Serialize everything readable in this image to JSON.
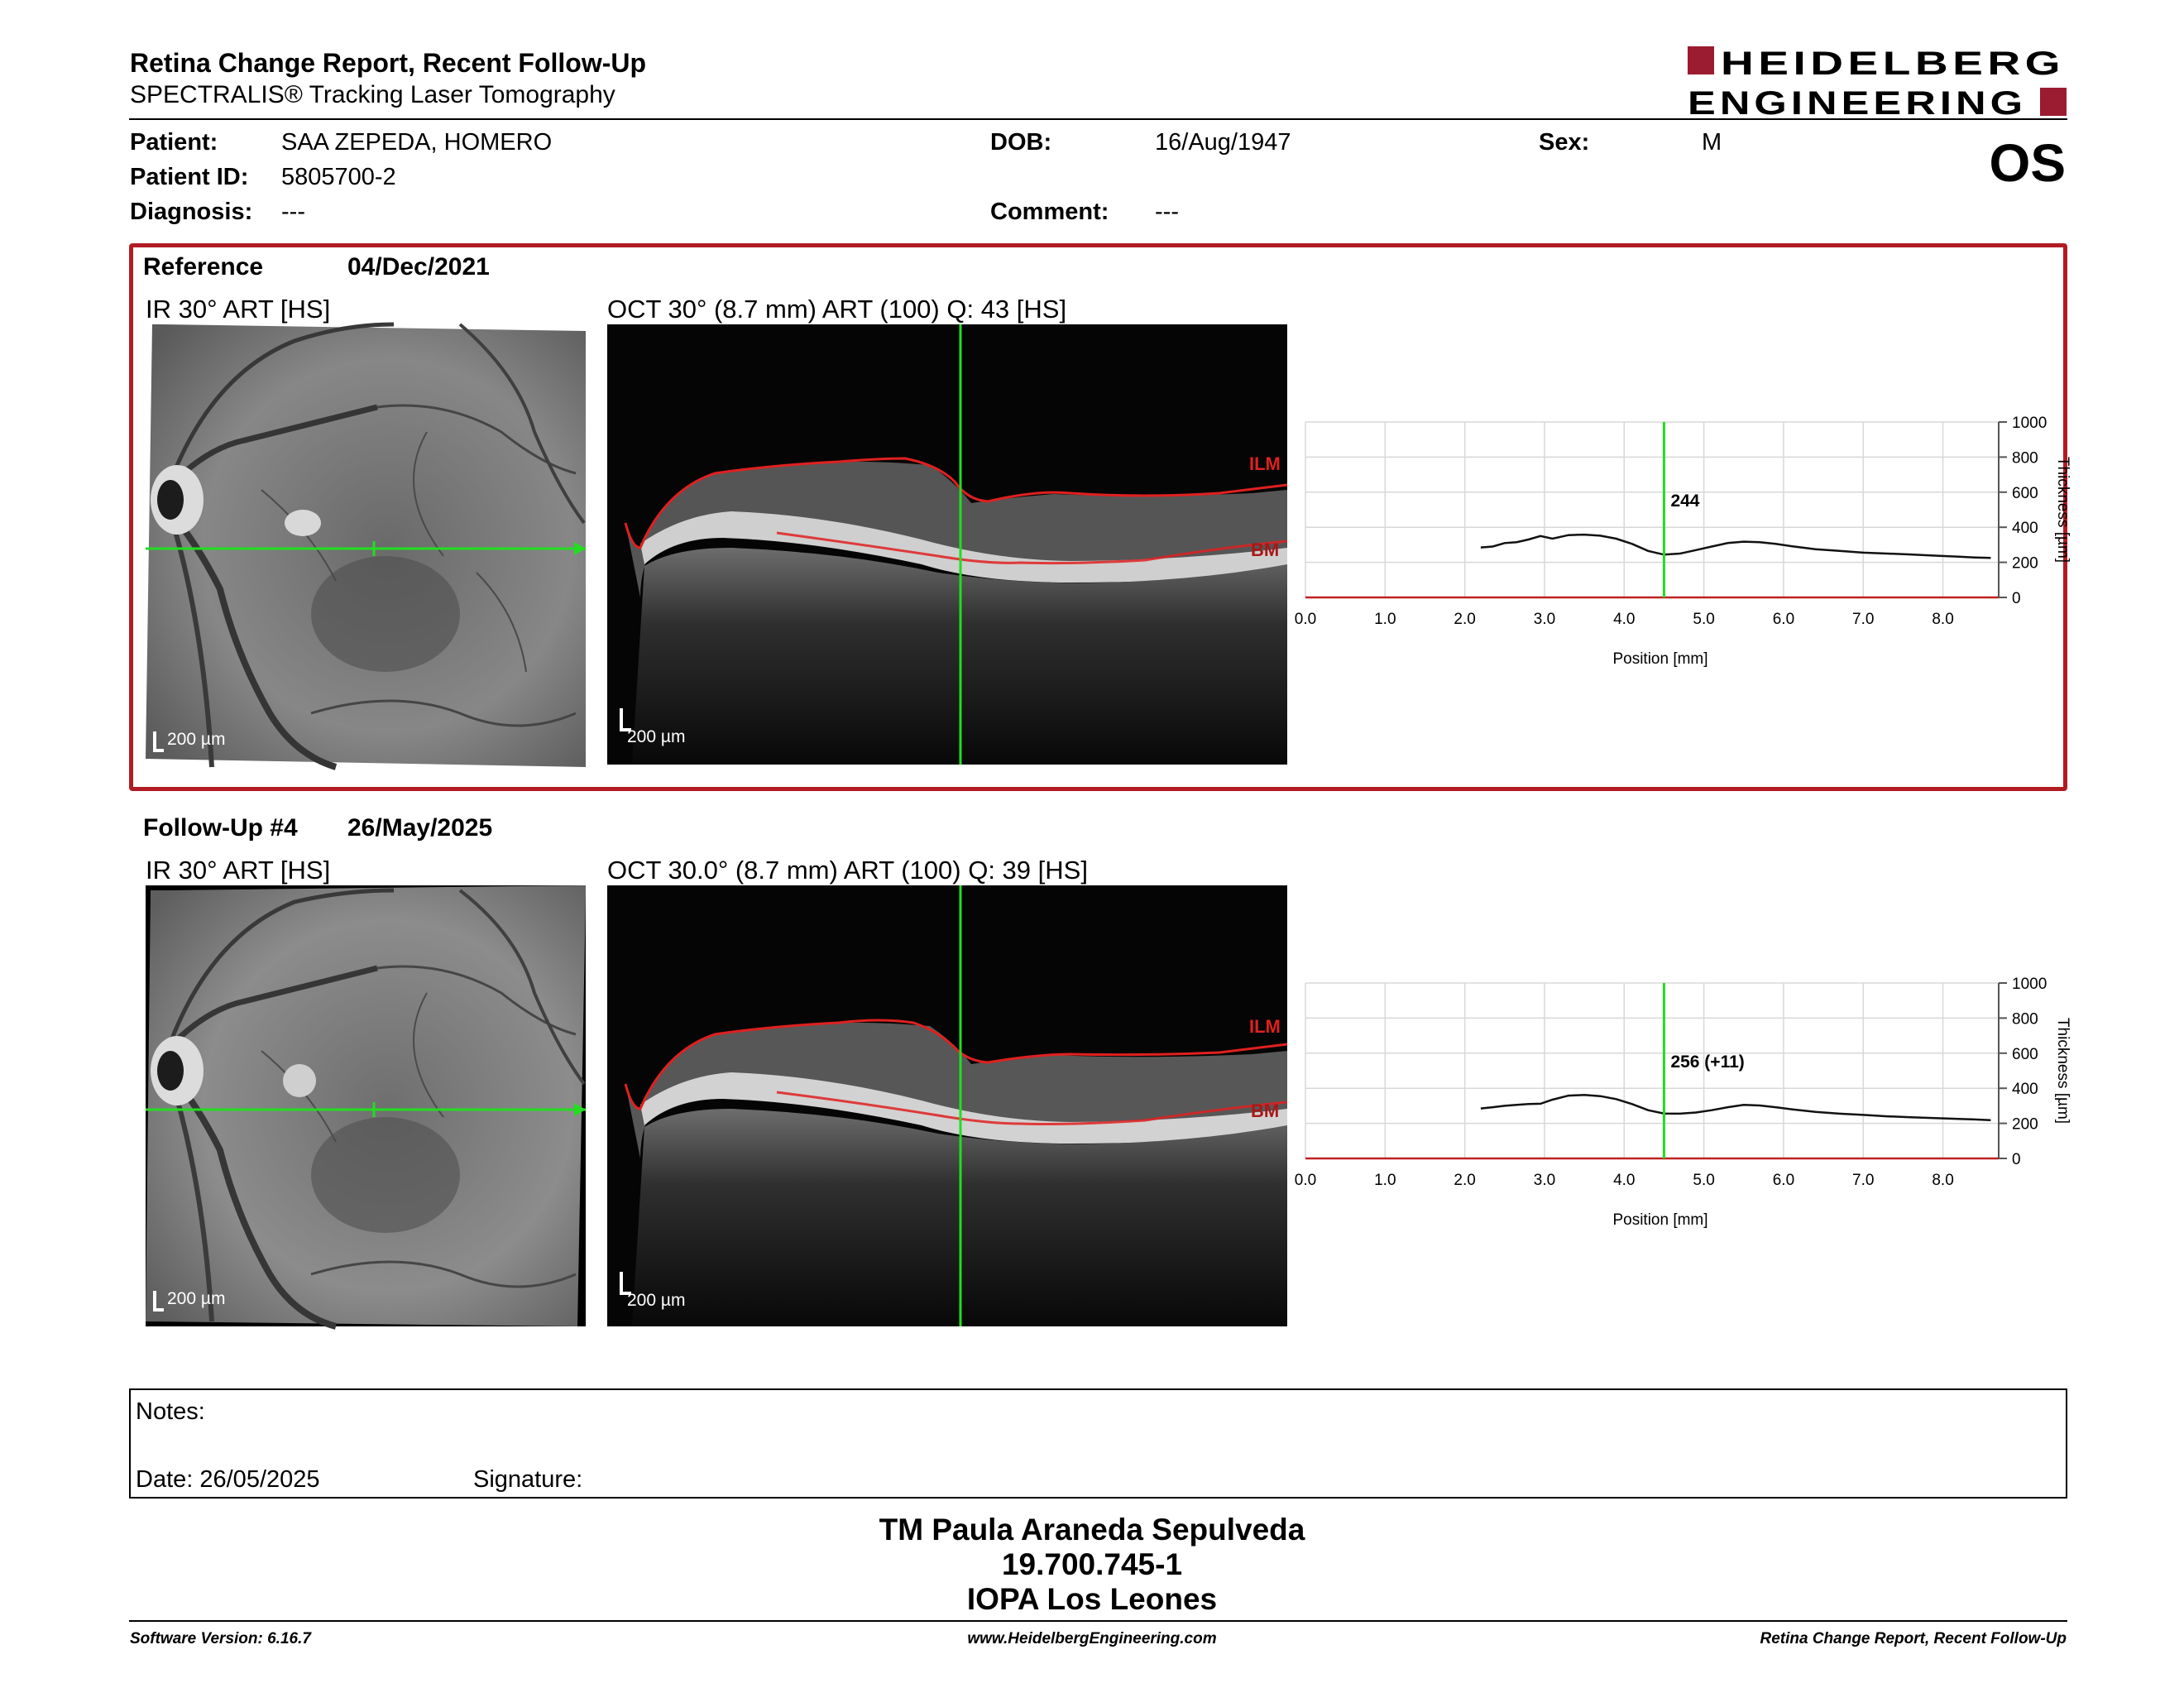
{
  "header": {
    "title": "Retina Change Report, Recent Follow-Up",
    "subtitle": "SPECTRALIS® Tracking Laser Tomography",
    "logo_line1": "HEIDELBERG",
    "logo_line2": "ENGINEERING",
    "eye": "OS"
  },
  "patient": {
    "patient_label": "Patient:",
    "patient_name": "SAA ZEPEDA, HOMERO",
    "id_label": "Patient ID:",
    "patient_id": "5805700-2",
    "diagnosis_label": "Diagnosis:",
    "diagnosis": "---",
    "dob_label": "DOB:",
    "dob": "16/Aug/1947",
    "comment_label": "Comment:",
    "comment": "---",
    "sex_label": "Sex:",
    "sex": "M"
  },
  "reference": {
    "label": "Reference",
    "date": "04/Dec/2021",
    "ir_caption": "IR 30° ART [HS]",
    "oct_caption": "OCT 30° (8.7 mm) ART (100) Q: 43 [HS]",
    "ir_scale": "200 µm",
    "oct_scale": "200 µm",
    "ilm_label": "ILM",
    "bm_label": "BM"
  },
  "followup": {
    "label": "Follow-Up #4",
    "date": "26/May/2025",
    "ir_caption": "IR 30° ART [HS]",
    "oct_caption": "OCT 30.0° (8.7 mm) ART (100) Q: 39 [HS]",
    "ir_scale": "200 µm",
    "oct_scale": "200 µm",
    "ilm_label": "ILM",
    "bm_label": "BM"
  },
  "chart_data": [
    {
      "type": "line",
      "xlabel": "Position [mm]",
      "ylabel": "Thickness [µm]",
      "xlim": [
        0,
        8.7
      ],
      "ylim": [
        0,
        1000
      ],
      "x_ticks": [
        "0.0",
        "1.0",
        "2.0",
        "3.0",
        "4.0",
        "5.0",
        "6.0",
        "7.0",
        "8.0"
      ],
      "y_ticks": [
        "0",
        "200",
        "400",
        "600",
        "800",
        "1000"
      ],
      "marker_x": 4.5,
      "marker_label": "244",
      "series": [
        {
          "values": [
            [
              2.2,
              285
            ],
            [
              2.35,
              290
            ],
            [
              2.5,
              310
            ],
            [
              2.65,
              315
            ],
            [
              2.8,
              330
            ],
            [
              2.95,
              350
            ],
            [
              3.1,
              335
            ],
            [
              3.3,
              355
            ],
            [
              3.5,
              358
            ],
            [
              3.7,
              352
            ],
            [
              3.9,
              335
            ],
            [
              4.1,
              305
            ],
            [
              4.3,
              265
            ],
            [
              4.5,
              244
            ],
            [
              4.7,
              250
            ],
            [
              4.9,
              270
            ],
            [
              5.1,
              290
            ],
            [
              5.3,
              310
            ],
            [
              5.5,
              318
            ],
            [
              5.7,
              315
            ],
            [
              5.9,
              305
            ],
            [
              6.1,
              292
            ],
            [
              6.4,
              275
            ],
            [
              6.7,
              265
            ],
            [
              7.0,
              255
            ],
            [
              7.3,
              250
            ],
            [
              7.6,
              245
            ],
            [
              7.9,
              238
            ],
            [
              8.2,
              232
            ],
            [
              8.4,
              228
            ],
            [
              8.6,
              225
            ]
          ]
        }
      ]
    },
    {
      "type": "line",
      "xlabel": "Position [mm]",
      "ylabel": "Thickness [µm]",
      "xlim": [
        0,
        8.7
      ],
      "ylim": [
        0,
        1000
      ],
      "x_ticks": [
        "0.0",
        "1.0",
        "2.0",
        "3.0",
        "4.0",
        "5.0",
        "6.0",
        "7.0",
        "8.0"
      ],
      "y_ticks": [
        "0",
        "200",
        "400",
        "600",
        "800",
        "1000"
      ],
      "marker_x": 4.5,
      "marker_label": "256 (+11)",
      "series": [
        {
          "values": [
            [
              2.2,
              285
            ],
            [
              2.35,
              292
            ],
            [
              2.5,
              300
            ],
            [
              2.65,
              305
            ],
            [
              2.8,
              310
            ],
            [
              2.95,
              312
            ],
            [
              3.1,
              335
            ],
            [
              3.3,
              358
            ],
            [
              3.5,
              362
            ],
            [
              3.7,
              355
            ],
            [
              3.9,
              338
            ],
            [
              4.1,
              310
            ],
            [
              4.3,
              275
            ],
            [
              4.5,
              256
            ],
            [
              4.7,
              255
            ],
            [
              4.9,
              262
            ],
            [
              5.1,
              275
            ],
            [
              5.3,
              292
            ],
            [
              5.5,
              305
            ],
            [
              5.7,
              302
            ],
            [
              5.9,
              292
            ],
            [
              6.1,
              280
            ],
            [
              6.4,
              265
            ],
            [
              6.7,
              255
            ],
            [
              7.0,
              248
            ],
            [
              7.3,
              240
            ],
            [
              7.6,
              235
            ],
            [
              7.9,
              230
            ],
            [
              8.2,
              225
            ],
            [
              8.4,
              222
            ],
            [
              8.6,
              218
            ]
          ]
        }
      ]
    }
  ],
  "notes": {
    "label": "Notes:",
    "date_label": "Date: 26/05/2025",
    "signature_label": "Signature:"
  },
  "signatory": {
    "name": "TM Paula Araneda Sepulveda",
    "rut": "19.700.745-1",
    "clinic": "IOPA Los Leones"
  },
  "footer": {
    "software": "Software Version: 6.16.7",
    "website": "www.HeidelbergEngineering.com",
    "report_name": "Retina Change Report, Recent Follow-Up"
  },
  "colors": {
    "frame": "#b11c23",
    "logo": "#9b1b30",
    "scan_line": "#22dd22",
    "ilm_bm": "#d01818"
  }
}
